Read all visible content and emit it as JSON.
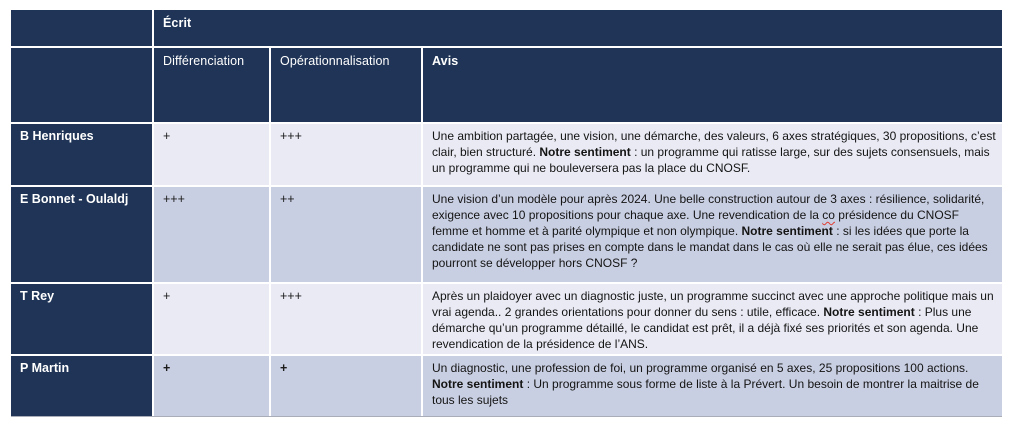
{
  "table": {
    "group_header": "Écrit",
    "columns": [
      {
        "label": "Différenciation"
      },
      {
        "label": "Opérationnalisation"
      },
      {
        "label": "Avis"
      }
    ],
    "rows": [
      {
        "name": "B Henriques",
        "differenciation": "+",
        "operationnalisation": "+++",
        "ratings_bold": false,
        "avis": [
          {
            "t": "Une ambition partagée, une vision, une démarche, des valeurs, 6 axes stratégiques, 30 propositions, c’est clair, bien structuré. "
          },
          {
            "t": "Notre sentiment",
            "b": true
          },
          {
            "t": " : un programme qui ratisse large, sur des sujets consensuels, mais un programme qui ne bouleversera pas la place du CNOSF."
          }
        ]
      },
      {
        "name": "E Bonnet - Oulaldj",
        "differenciation": "+++",
        "operationnalisation": "++",
        "ratings_bold": false,
        "avis": [
          {
            "t": "Une vision d’un modèle  pour après 2024. Une belle construction autour de 3 axes : résilience, solidarité, exigence avec 10 propositions pour chaque axe. Une revendication de la "
          },
          {
            "t": "co",
            "squiggle": true
          },
          {
            "t": " présidence du CNOSF femme et homme et à parité olympique et non olympique. "
          },
          {
            "t": "Notre sentiment",
            "b": true
          },
          {
            "t": " : si les idées que porte la candidate ne sont pas prises en compte dans le mandat dans le cas où elle ne serait pas élue, ces idées pourront se développer hors CNOSF ?"
          }
        ]
      },
      {
        "name": "T Rey",
        "differenciation": "+",
        "operationnalisation": "+++",
        "ratings_bold": false,
        "avis": [
          {
            "t": "Après un plaidoyer avec un diagnostic juste, un programme succinct avec une approche politique mais un vrai agenda.. 2 grandes orientations pour donner du sens : utile, efficace. "
          },
          {
            "t": "Notre sentiment",
            "b": true
          },
          {
            "t": " : Plus une démarche qu’un programme détaillé, le candidat est prêt, il a déjà fixé ses priorités et son agenda. Une revendication de la présidence de l’ANS."
          }
        ]
      },
      {
        "name": "P Martin",
        "differenciation": "+",
        "operationnalisation": "+",
        "ratings_bold": true,
        "avis": [
          {
            "t": "Un diagnostic, une profession de foi, un  programme organisé en 5 axes, 25 propositions 100 actions. "
          },
          {
            "t": "Notre sentiment",
            "b": true
          },
          {
            "t": " : Un programme sous forme de liste à la Prévert. Un besoin de montrer la maitrise de tous les sujets"
          }
        ]
      }
    ],
    "colors": {
      "header_navy": "#1F3456",
      "band_light": "#E9EAF4",
      "band_dark": "#C9CFE2",
      "border_white": "#FFFFFF",
      "spellcheck_red": "#E03B2F"
    }
  }
}
